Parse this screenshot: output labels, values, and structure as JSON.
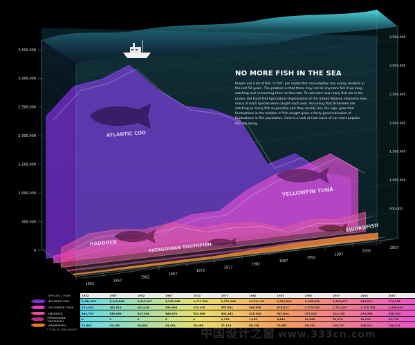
{
  "chart_data": {
    "type": "area",
    "title": "NO MORE FISH IN THE SEA",
    "description": "People eat a lot of fish. In fact, per capita fish consumption has nearly doubled in the last 50 years. The problem is that there may not be anymore fish if we keep catching and consuming them at this rate. To calculate how many fish are in the ocean, the Food And Agriculture Organization of the United Nations measures how many of each species were caught each year. Assuming that fishermen are catching as many fish as possible and they usually are, the logic goes that fluctuations in the number of fish caught gives a fairly good indication of fluctuations in fish population. Here is a look at how some of our most popular fish are doing.",
    "x": [
      "1952",
      "1957",
      "1962",
      "1967",
      "1972",
      "1977",
      "1982",
      "1987",
      "1992",
      "1997",
      "2002",
      "2007"
    ],
    "y_ticks_left": [
      "0",
      "500,000",
      "1,000,000",
      "1,500,000",
      "2,000,000",
      "2,500,000",
      "3,000,000",
      "3,500,000"
    ],
    "y_ticks_right": [
      "500,000",
      "1,000,000",
      "1,500,000",
      "2,000,000",
      "2,500,000",
      "3,000,000",
      "3,500,000"
    ],
    "ylim": [
      0,
      3500000
    ],
    "table_header": [
      "SPECIES / YEAR",
      "1952",
      "1957",
      "1962",
      "1967",
      "1972",
      "1977",
      "1982",
      "1987",
      "1992",
      "1997",
      "2002",
      "2007"
    ],
    "footnote": "* TONS OF FISH CAUGHT",
    "series": [
      {
        "name": "ATLANTIC COD",
        "color": "#7b2fd6",
        "values": [
          2481316,
          2945864,
          3013007,
          3201008,
          2727589,
          2371330,
          2254116,
          2019599,
          1185011,
          1315075,
          933211,
          774186
        ],
        "labels": [
          "2,481,316",
          "2,945,864",
          "3,013,007",
          "3,201,008",
          "2,727,589",
          "2,371,330",
          "2,254,116",
          "2,019,599",
          "1,185,011",
          "1,315,075",
          "933,211",
          "774,186"
        ]
      },
      {
        "name": "YELLOWFIN TUNA",
        "color": "#e03cc8",
        "values": [
          121291,
          182619,
          281428,
          233980,
          423130,
          557861,
          563506,
          878827,
          1079534,
          1171407,
          1335704,
          1006629
        ],
        "labels": [
          "121,291",
          "182,619",
          "281,428",
          "233,980",
          "423,130",
          "557,861",
          "563,506",
          "878,827",
          "1,079,534",
          "1,171,407",
          "1,335,704",
          "1,006,629"
        ]
      },
      {
        "name": "HADDOCK",
        "color": "#f04d9a",
        "values": [
          344753,
          530096,
          547494,
          486870,
          552868,
          404363,
          423103,
          387804,
          227815,
          324105,
          270299,
          336230
        ],
        "labels": [
          "344,753",
          "530,096",
          "547,494",
          "486,870",
          "552,868",
          "404,363",
          "423,103",
          "387,804",
          "227,815",
          "324,105",
          "270,299",
          "336,230"
        ]
      },
      {
        "name": "PATAGONIAN TOOTHFISH",
        "color": "#b42c8c",
        "values": [
          0,
          0,
          0,
          0,
          0,
          1176,
          1130,
          6841,
          39830,
          30170,
          42070,
          34735
        ],
        "labels": [
          "0",
          "0",
          "0",
          "0",
          "0",
          "1,176",
          "1,130",
          "6,841",
          "39,830",
          "30,170",
          "42,070",
          "34,735"
        ]
      },
      {
        "name": "SWORDFISH",
        "color": "#f07820",
        "values": [
          17881,
          19199,
          30888,
          34418,
          36968,
          37126,
          58108,
          74887,
          96312,
          108707,
          106211,
          106211
        ],
        "labels": [
          "17,881",
          "19,199",
          "30,888",
          "34,418",
          "36,968",
          "37,126",
          "58,108",
          "74,887",
          "96,312",
          "108,707",
          "106,211",
          "106,211"
        ]
      }
    ],
    "grid": true,
    "legend": "table-bottom"
  },
  "watermark": {
    "text": "中国设计之窗",
    "url": "www.333cn.com"
  }
}
